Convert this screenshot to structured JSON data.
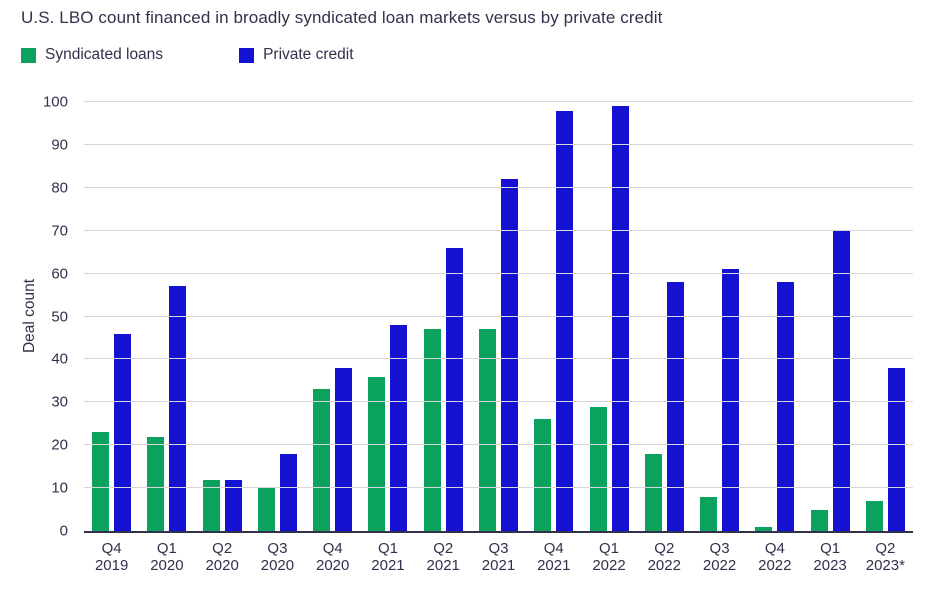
{
  "title": "U.S. LBO count financed in broadly syndicated loan markets versus by private credit",
  "legend": {
    "items": [
      {
        "label": "Syndicated loans",
        "color": "#0aa25c"
      },
      {
        "label": "Private credit",
        "color": "#1511d0"
      }
    ]
  },
  "colors": {
    "text": "#31314b",
    "gridline": "#d7d7db",
    "axis": "#31314b",
    "background": "#ffffff"
  },
  "chart_data": {
    "type": "bar",
    "title": "U.S. LBO count financed in broadly syndicated loan markets versus by private credit",
    "xlabel": "",
    "ylabel": "Deal count",
    "ylim": [
      0,
      100
    ],
    "yticks": [
      0,
      10,
      20,
      30,
      40,
      50,
      60,
      70,
      80,
      90,
      100
    ],
    "grid": true,
    "legend_position": "top-left",
    "categories": [
      "Q4 2019",
      "Q1 2020",
      "Q2 2020",
      "Q3 2020",
      "Q4 2020",
      "Q1 2021",
      "Q2 2021",
      "Q3 2021",
      "Q4 2021",
      "Q1 2022",
      "Q2 2022",
      "Q3 2022",
      "Q4 2022",
      "Q1 2023",
      "Q2 2023*"
    ],
    "series": [
      {
        "name": "Syndicated loans",
        "color": "#0aa25c",
        "values": [
          23,
          22,
          12,
          10,
          33,
          36,
          47,
          47,
          26,
          29,
          18,
          8,
          1,
          5,
          7
        ]
      },
      {
        "name": "Private credit",
        "color": "#1511d0",
        "values": [
          46,
          57,
          12,
          18,
          38,
          48,
          66,
          82,
          98,
          99,
          58,
          61,
          58,
          70,
          38
        ]
      }
    ]
  }
}
